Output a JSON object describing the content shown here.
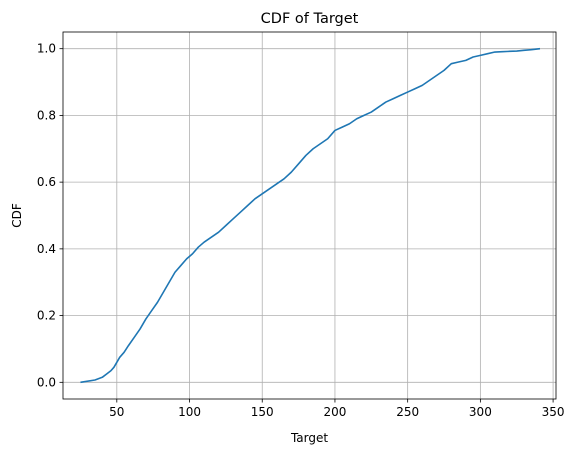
{
  "chart_data": {
    "type": "line",
    "title": "CDF of Target",
    "xlabel": "Target",
    "ylabel": "CDF",
    "xlim": [
      13,
      352
    ],
    "ylim": [
      -0.05,
      1.05
    ],
    "xticks": [
      50,
      100,
      150,
      200,
      250,
      300,
      350
    ],
    "yticks": [
      0.0,
      0.2,
      0.4,
      0.6,
      0.8,
      1.0
    ],
    "xtick_labels": [
      "50",
      "100",
      "150",
      "200",
      "250",
      "300",
      "350"
    ],
    "ytick_labels": [
      "0.0",
      "0.2",
      "0.4",
      "0.6",
      "0.8",
      "1.0"
    ],
    "grid": true,
    "line_color": "#1f77b4",
    "series": [
      {
        "x": [
          25,
          35,
          40,
          43,
          46,
          48,
          50,
          52,
          55,
          58,
          62,
          66,
          70,
          74,
          78,
          82,
          86,
          90,
          94,
          98,
          102,
          106,
          110,
          115,
          120,
          125,
          130,
          135,
          140,
          145,
          150,
          155,
          160,
          165,
          170,
          175,
          180,
          185,
          190,
          195,
          200,
          205,
          210,
          215,
          220,
          225,
          230,
          235,
          240,
          245,
          250,
          255,
          260,
          265,
          270,
          275,
          280,
          285,
          290,
          295,
          300,
          305,
          310,
          315,
          320,
          325,
          330,
          335,
          341
        ],
        "y": [
          0.0,
          0.007,
          0.015,
          0.025,
          0.035,
          0.045,
          0.06,
          0.075,
          0.09,
          0.11,
          0.135,
          0.16,
          0.19,
          0.215,
          0.24,
          0.27,
          0.3,
          0.33,
          0.35,
          0.37,
          0.385,
          0.405,
          0.42,
          0.435,
          0.45,
          0.47,
          0.49,
          0.51,
          0.53,
          0.55,
          0.565,
          0.58,
          0.595,
          0.61,
          0.63,
          0.655,
          0.68,
          0.7,
          0.715,
          0.73,
          0.755,
          0.765,
          0.775,
          0.79,
          0.8,
          0.81,
          0.825,
          0.84,
          0.85,
          0.86,
          0.87,
          0.88,
          0.89,
          0.905,
          0.92,
          0.935,
          0.955,
          0.96,
          0.965,
          0.975,
          0.98,
          0.985,
          0.99,
          0.991,
          0.992,
          0.993,
          0.995,
          0.997,
          1.0
        ]
      }
    ]
  }
}
